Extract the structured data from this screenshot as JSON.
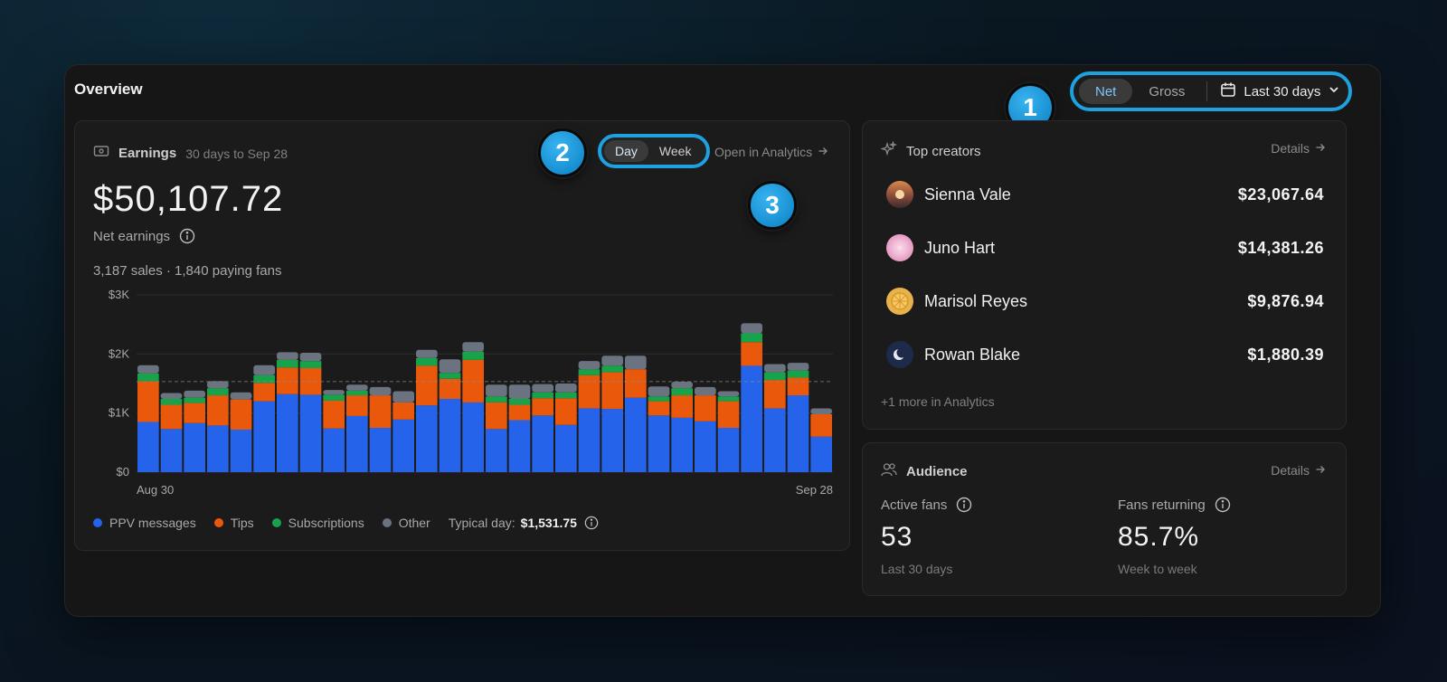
{
  "page": {
    "title": "Overview"
  },
  "controls": {
    "net_label": "Net",
    "gross_label": "Gross",
    "range_label": "Last 30 days"
  },
  "badges": {
    "one": "1",
    "two": "2",
    "three": "3"
  },
  "earnings": {
    "title": "Earnings",
    "subtitle": "30 days to Sep 28",
    "day_label": "Day",
    "week_label": "Week",
    "open_link": "Open in Analytics",
    "amount": "$50,107.72",
    "amount_label": "Net earnings",
    "sales_line": "3,187 sales · 1,840 paying fans",
    "legend": {
      "ppv": "PPV messages",
      "tips": "Tips",
      "subs": "Subscriptions",
      "other": "Other",
      "typical_label": "Typical day:",
      "typical_value": "$1,531.75"
    }
  },
  "chart_data": {
    "type": "bar",
    "stacked": true,
    "y_ticks": [
      "$3K",
      "$2K",
      "$1K",
      "$0"
    ],
    "ylim": [
      0,
      3000
    ],
    "x_tick_labels": [
      "Aug 30",
      "Sep 28"
    ],
    "reference_line": 1531.75,
    "colors": {
      "ppv": "#2563eb",
      "tips": "#ea580c",
      "subs": "#16a34a",
      "other": "#6b7280"
    },
    "series": [
      {
        "name": "PPV messages",
        "values": [
          850,
          730,
          830,
          790,
          720,
          1200,
          1320,
          1310,
          740,
          950,
          750,
          890,
          1130,
          1240,
          1180,
          730,
          880,
          960,
          800,
          1080,
          1070,
          1260,
          960,
          920,
          860,
          750,
          1800,
          1080,
          1300,
          600
        ]
      },
      {
        "name": "Tips",
        "values": [
          690,
          410,
          340,
          510,
          510,
          310,
          450,
          450,
          470,
          350,
          550,
          290,
          670,
          340,
          720,
          450,
          260,
          290,
          450,
          560,
          620,
          480,
          240,
          380,
          440,
          450,
          400,
          480,
          300,
          380
        ]
      },
      {
        "name": "Subscriptions",
        "values": [
          130,
          100,
          90,
          120,
          0,
          130,
          130,
          120,
          100,
          80,
          0,
          0,
          130,
          100,
          140,
          100,
          100,
          100,
          100,
          100,
          110,
          0,
          80,
          120,
          0,
          80,
          150,
          130,
          120,
          0
        ]
      },
      {
        "name": "Other",
        "values": [
          140,
          100,
          120,
          120,
          120,
          170,
          130,
          140,
          80,
          100,
          140,
          190,
          140,
          230,
          160,
          200,
          240,
          140,
          150,
          140,
          170,
          230,
          170,
          110,
          140,
          90,
          170,
          140,
          130,
          100
        ]
      }
    ]
  },
  "creators": {
    "title": "Top creators",
    "details": "Details",
    "list": [
      {
        "name": "Sienna Vale",
        "amount": "$23,067.64"
      },
      {
        "name": "Juno Hart",
        "amount": "$14,381.26"
      },
      {
        "name": "Marisol Reyes",
        "amount": "$9,876.94"
      },
      {
        "name": "Rowan Blake",
        "amount": "$1,880.39"
      }
    ],
    "more": "+1 more in Analytics"
  },
  "audience": {
    "title": "Audience",
    "details": "Details",
    "active_label": "Active fans",
    "active_value": "53",
    "active_note": "Last 30 days",
    "returning_label": "Fans returning",
    "returning_value": "85.7%",
    "returning_note": "Week to week"
  }
}
